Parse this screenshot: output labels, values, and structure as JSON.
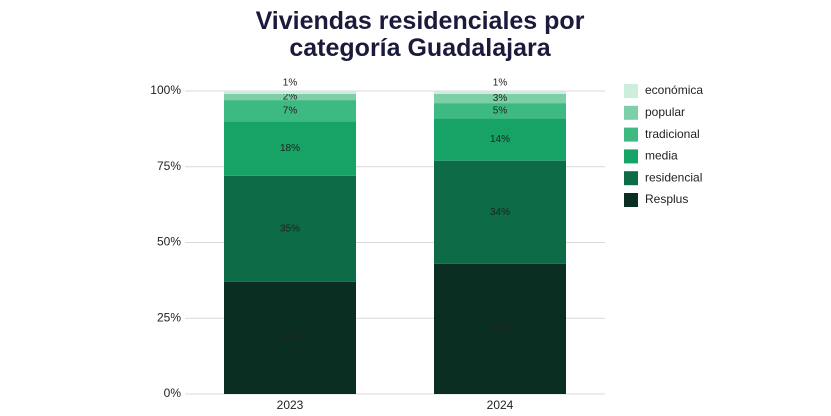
{
  "chart_data": {
    "type": "stacked_bar",
    "title": "Viviendas residenciales por categoría Guadalajara",
    "categories": [
      "2023",
      "2024"
    ],
    "series": [
      {
        "name": "Resplus",
        "color": "#0b2e22",
        "values": [
          37,
          43
        ],
        "value_labels": [
          "37%",
          "43%"
        ]
      },
      {
        "name": "residencial",
        "color": "#0e6b47",
        "values": [
          35,
          34
        ],
        "value_labels": [
          "35%",
          "34%"
        ]
      },
      {
        "name": "media",
        "color": "#17a366",
        "values": [
          18,
          14
        ],
        "value_labels": [
          "18%",
          "14%"
        ]
      },
      {
        "name": "tradicional",
        "color": "#3dba82",
        "values": [
          7,
          5
        ],
        "value_labels": [
          "7%",
          "5%"
        ]
      },
      {
        "name": "popular",
        "color": "#7ccfa7",
        "values": [
          2,
          3
        ],
        "value_labels": [
          "2%",
          "3%"
        ]
      },
      {
        "name": "económica",
        "color": "#cdeedc",
        "values": [
          1,
          1
        ],
        "value_labels": [
          "1%",
          "1%"
        ]
      }
    ],
    "ylim": [
      0,
      100
    ],
    "yticks": [
      {
        "value": 0,
        "label": "0%"
      },
      {
        "value": 25,
        "label": "25%"
      },
      {
        "value": 50,
        "label": "50%"
      },
      {
        "value": 75,
        "label": "75%"
      },
      {
        "value": 100,
        "label": "100%"
      }
    ],
    "grid": true,
    "legend": "right"
  }
}
